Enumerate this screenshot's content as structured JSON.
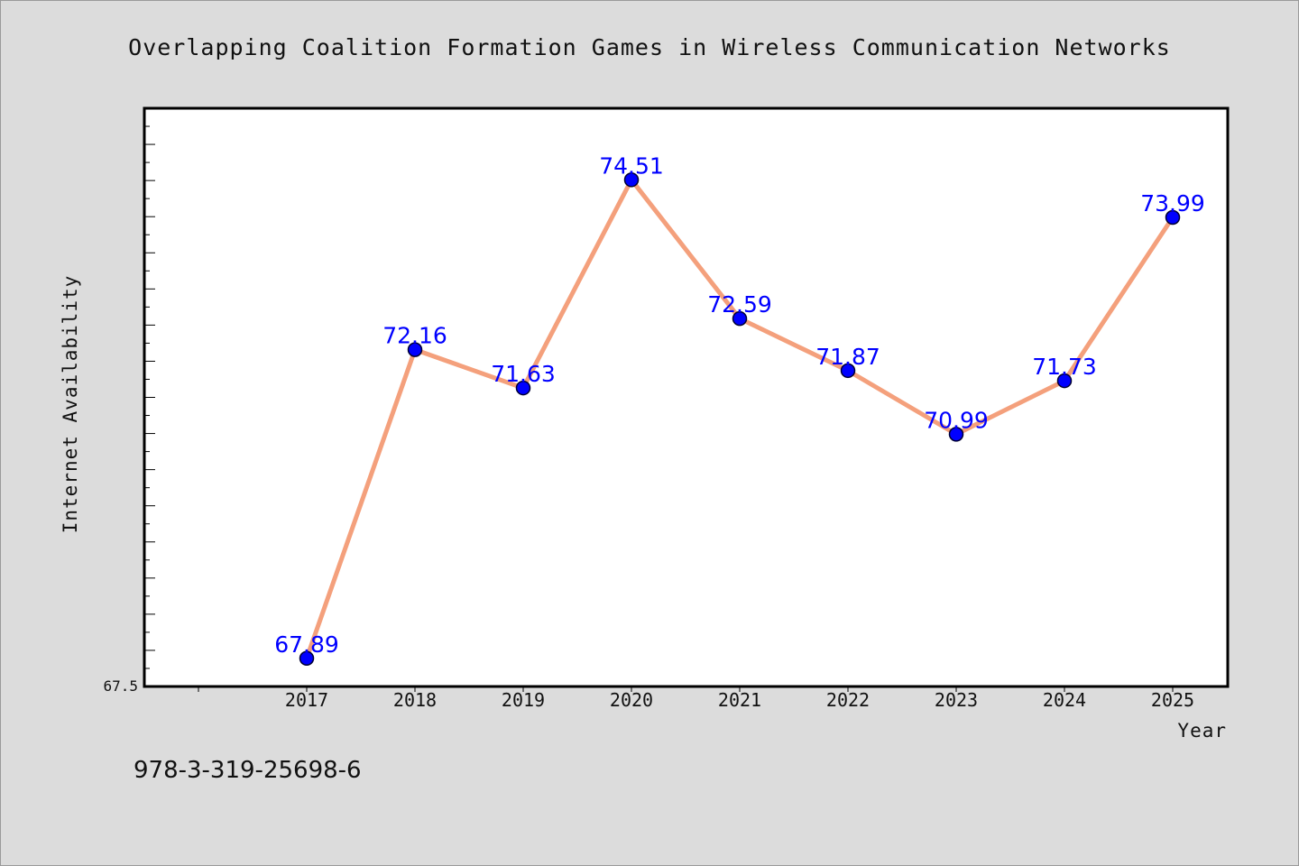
{
  "chart_data": {
    "type": "line",
    "title": "Overlapping Coalition Formation Games in Wireless Communication Networks",
    "xlabel": "Year",
    "ylabel": "Internet Availability",
    "categories": [
      "2017",
      "2018",
      "2019",
      "2020",
      "2021",
      "2022",
      "2023",
      "2024",
      "2025"
    ],
    "series": [
      {
        "values": [
          67.89,
          72.16,
          71.63,
          74.51,
          72.59,
          71.87,
          70.99,
          71.73,
          73.99
        ],
        "line_color": "#f4a07c",
        "marker_color": "#0000ff"
      }
    ],
    "data_labels": [
      "67.89",
      "72.16",
      "71.63",
      "74.51",
      "72.59",
      "71.87",
      "70.99",
      "71.73",
      "73.99"
    ],
    "ylim": [
      67.5,
      75.5
    ],
    "y_tick_labels": [
      "67.5"
    ],
    "grid": false,
    "legend": false
  },
  "footer_text": "978-3-319-25698-6",
  "colors": {
    "background": "#dcdcdc",
    "plot_background": "#ffffff",
    "axis": "#000000",
    "label_text": "#0000ff"
  }
}
